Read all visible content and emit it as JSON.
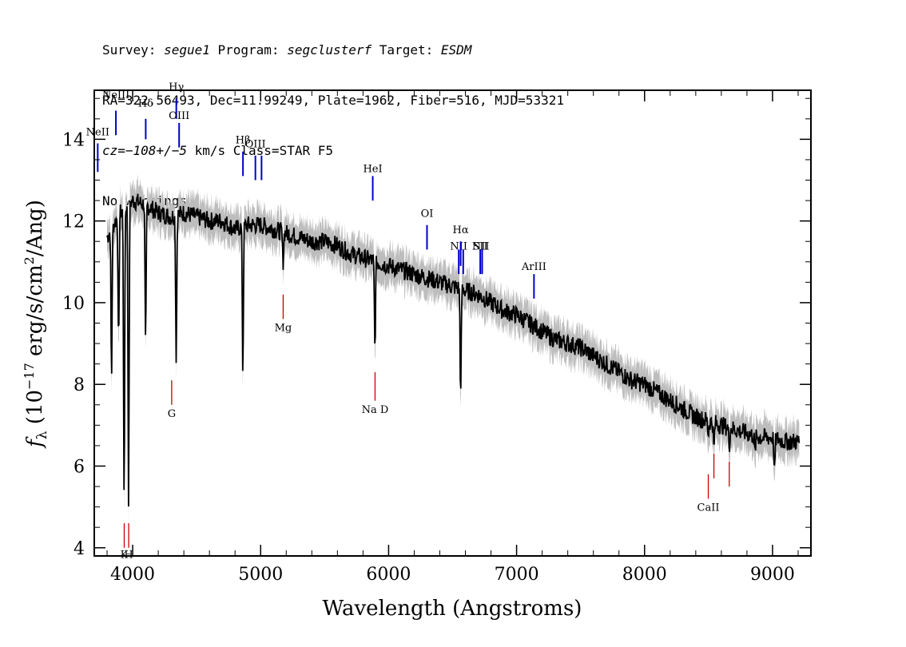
{
  "header": {
    "line1": {
      "survey_label": "Survey: ",
      "survey_value": "segue1",
      "program_label": " Program: ",
      "program_value": "segclusterf",
      "target_label": " Target: ",
      "target_value": "ESDM"
    },
    "line2": "RA=322.56493, Dec=11.99249, Plate=1962, Fiber=516, MJD=53321",
    "line3": {
      "cz_label": "cz=",
      "cz_value": "−108+/−5",
      "cz_unit": " km/s Class=STAR F5"
    },
    "line4": "No warnings."
  },
  "chart_data": {
    "type": "line",
    "xlabel": "Wavelength (Angstroms)",
    "ylabel_parts": {
      "f": "f",
      "sub": "λ",
      "open": " (10",
      "exp": "−17",
      "mid": " erg/s/cm",
      "exp2": "2",
      "close": "/Ang)"
    },
    "xlim": [
      3700,
      9300
    ],
    "ylim": [
      3.8,
      15.2
    ],
    "x_ticks": [
      4000,
      5000,
      6000,
      7000,
      8000,
      9000
    ],
    "y_ticks": [
      4,
      6,
      8,
      10,
      12,
      14
    ],
    "x_tick_labels": [
      "4000",
      "5000",
      "6000",
      "7000",
      "8000",
      "9000"
    ],
    "y_tick_labels": [
      "4",
      "6",
      "8",
      "10",
      "12",
      "14"
    ],
    "series": [
      {
        "role": "flux",
        "color": "#000000",
        "x": [
          3800,
          3900,
          4000,
          4100,
          4200,
          4300,
          4400,
          4500,
          4600,
          4700,
          4800,
          4900,
          5000,
          5100,
          5200,
          5300,
          5400,
          5500,
          5600,
          5700,
          5800,
          5900,
          6000,
          6100,
          6200,
          6300,
          6400,
          6500,
          6600,
          6700,
          6800,
          6900,
          7000,
          7100,
          7200,
          7300,
          7400,
          7500,
          7600,
          7700,
          7800,
          7900,
          8000,
          8100,
          8200,
          8300,
          8400,
          8500,
          8600,
          8700,
          8800,
          8900,
          9000,
          9100,
          9200
        ],
        "y": [
          11.6,
          12.2,
          12.5,
          12.4,
          12.2,
          12.1,
          12.2,
          12.1,
          12.0,
          12.0,
          11.8,
          11.9,
          11.9,
          11.8,
          11.7,
          11.6,
          11.5,
          11.5,
          11.4,
          11.2,
          11.1,
          11.0,
          10.9,
          10.8,
          10.7,
          10.6,
          10.5,
          10.4,
          10.3,
          10.2,
          10.0,
          9.8,
          9.7,
          9.5,
          9.3,
          9.1,
          9.0,
          8.9,
          8.7,
          8.5,
          8.3,
          8.1,
          8.0,
          7.8,
          7.6,
          7.4,
          7.2,
          7.1,
          7.0,
          6.9,
          6.8,
          6.7,
          6.7,
          6.6,
          6.6
        ]
      }
    ],
    "absorption_features": [
      {
        "x": 3835,
        "y": 8.2
      },
      {
        "x": 3890,
        "y": 8.9
      },
      {
        "x": 3933,
        "y": 5.0
      },
      {
        "x": 3968,
        "y": 5.2
      },
      {
        "x": 4101,
        "y": 8.9
      },
      {
        "x": 4340,
        "y": 8.7
      },
      {
        "x": 4861,
        "y": 8.3
      },
      {
        "x": 5175,
        "y": 11.0
      },
      {
        "x": 5893,
        "y": 8.9
      },
      {
        "x": 6563,
        "y": 7.7
      },
      {
        "x": 8498,
        "y": 6.8
      },
      {
        "x": 8542,
        "y": 6.4
      },
      {
        "x": 8662,
        "y": 6.5
      },
      {
        "x": 8863,
        "y": 6.3
      },
      {
        "x": 9015,
        "y": 5.8
      }
    ],
    "error_band": {
      "color": "#bdbdbd",
      "half_width": 0.35
    },
    "emission_lines": [
      {
        "label": "NeII",
        "x": 3727,
        "y_bot": 13.2,
        "y_top": 13.9,
        "label_y": 14.1
      },
      {
        "label": "NeIII",
        "x": 3869,
        "y_bot": 14.1,
        "y_top": 14.7,
        "label_y": 15.0
      },
      {
        "label": "Hδ",
        "x": 4102,
        "y_bot": 14.0,
        "y_top": 14.5,
        "label_y": 14.8
      },
      {
        "label": "Hγ",
        "x": 4341,
        "y_bot": 14.5,
        "y_top": 15.0,
        "label_y": 15.2
      },
      {
        "label": "OIII",
        "x": 4363,
        "y_bot": 13.8,
        "y_top": 14.4,
        "label_y": 14.5
      },
      {
        "label": "Hβ",
        "x": 4862,
        "y_bot": 13.1,
        "y_top": 13.7,
        "label_y": 13.9
      },
      {
        "label": "OIII",
        "x": 4959,
        "y_bot": 13.0,
        "y_top": 13.6,
        "label_y": 13.8
      },
      {
        "label": "",
        "x": 5007,
        "y_bot": 13.0,
        "y_top": 13.6,
        "label_y": 0
      },
      {
        "label": "HeI",
        "x": 5876,
        "y_bot": 12.5,
        "y_top": 13.1,
        "label_y": 13.2
      },
      {
        "label": "OI",
        "x": 6300,
        "y_bot": 11.3,
        "y_top": 11.9,
        "label_y": 12.1
      },
      {
        "label": "NII",
        "x": 6548,
        "y_bot": 10.7,
        "y_top": 11.3,
        "label_y": 11.3
      },
      {
        "label": "Hα",
        "x": 6563,
        "y_bot": 10.9,
        "y_top": 11.5,
        "label_y": 11.7
      },
      {
        "label": "",
        "x": 6583,
        "y_bot": 10.7,
        "y_top": 11.3,
        "label_y": 0
      },
      {
        "label": "SII",
        "x": 6716,
        "y_bot": 10.7,
        "y_top": 11.3,
        "label_y": 11.3
      },
      {
        "label": "",
        "x": 6731,
        "y_bot": 10.7,
        "y_top": 11.3,
        "label_y": 0
      },
      {
        "label": "NII",
        "x": 6720,
        "y_bot": 11.3,
        "y_top": 11.3,
        "label_y": 11.3
      },
      {
        "label": "ArIII",
        "x": 7136,
        "y_bot": 10.1,
        "y_top": 10.7,
        "label_y": 10.8
      }
    ],
    "absorption_lines": [
      {
        "label": "K",
        "x": 3934,
        "y_bot": 4.0,
        "y_top": 4.6,
        "label_y": 3.75
      },
      {
        "label": "H",
        "x": 3969,
        "y_bot": 4.0,
        "y_top": 4.6,
        "label_y": 3.75
      },
      {
        "label": "G",
        "x": 4305,
        "y_bot": 7.5,
        "y_top": 8.1,
        "label_y": 7.2
      },
      {
        "label": "Mg",
        "x": 5176,
        "y_bot": 9.6,
        "y_top": 10.2,
        "label_y": 9.3
      },
      {
        "label": "Na D",
        "x": 5894,
        "y_bot": 7.6,
        "y_top": 8.3,
        "label_y": 7.3
      },
      {
        "label": "CaII",
        "x": 8498,
        "y_bot": 5.2,
        "y_top": 5.8,
        "label_y": 4.9
      },
      {
        "label": "",
        "x": 8542,
        "y_bot": 5.7,
        "y_top": 6.3,
        "label_y": 0
      },
      {
        "label": "",
        "x": 8662,
        "y_bot": 5.5,
        "y_top": 6.1,
        "label_y": 0
      }
    ],
    "emission_color": "#0000cc",
    "absorption_color": "#cc0000"
  }
}
